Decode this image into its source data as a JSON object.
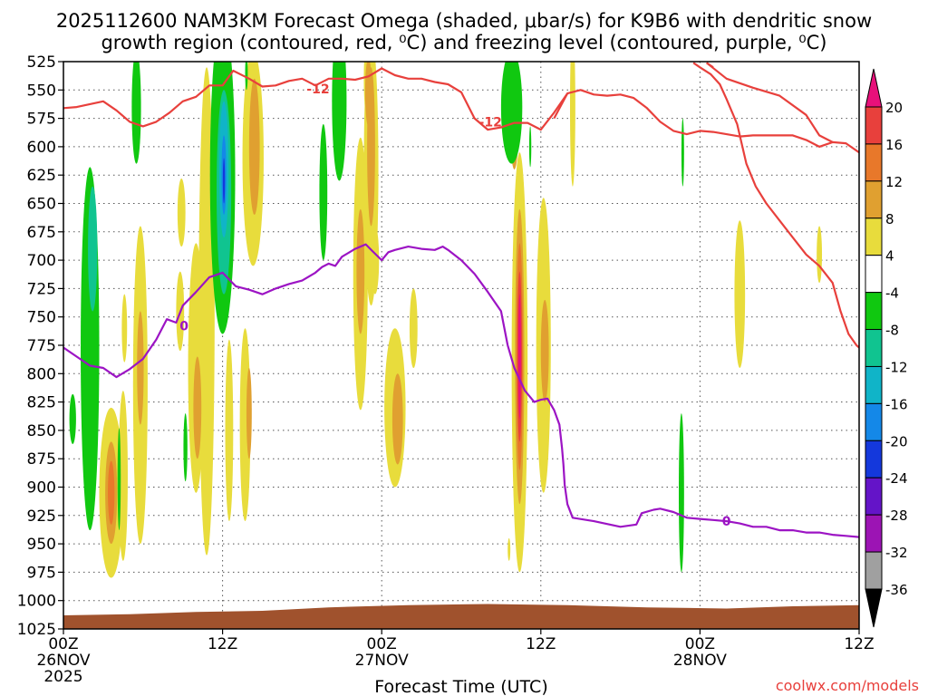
{
  "chart_data": {
    "type": "heatmap",
    "title_line1": "2025112600 NAM3KM Forecast Omega (shaded, μbar/s) for K9B6 with dendritic snow",
    "title_line2": "growth region (contoured, red, ⁰C) and freezing level (contoured, purple, ⁰C)",
    "xlabel": "Forecast Time (UTC)",
    "credit": "coolwx.com/models",
    "x_ticks": [
      {
        "h": 0,
        "label": "00Z",
        "sub": "26NOV",
        "sub2": "2025"
      },
      {
        "h": 12,
        "label": "12Z"
      },
      {
        "h": 24,
        "label": "00Z",
        "sub": "27NOV"
      },
      {
        "h": 36,
        "label": "12Z"
      },
      {
        "h": 48,
        "label": "00Z",
        "sub": "28NOV"
      },
      {
        "h": 60,
        "label": "12Z"
      }
    ],
    "xlim_hours": [
      0,
      60
    ],
    "ylim_mb": [
      525,
      1025
    ],
    "y_ticks": [
      525,
      550,
      575,
      600,
      625,
      650,
      675,
      700,
      725,
      750,
      775,
      800,
      825,
      850,
      875,
      900,
      925,
      950,
      975,
      1000,
      1025
    ],
    "colorbar": {
      "labels": [
        "20",
        "16",
        "12",
        "8",
        "4",
        "-4",
        "-8",
        "-12",
        "-16",
        "-20",
        "-24",
        "-28",
        "-32",
        "-36"
      ],
      "bands": [
        {
          "from": 20,
          "to": 24,
          "color": "#e8107a"
        },
        {
          "from": 16,
          "to": 20,
          "color": "#e8403c"
        },
        {
          "from": 12,
          "to": 16,
          "color": "#e8782a"
        },
        {
          "from": 8,
          "to": 12,
          "color": "#e0a030"
        },
        {
          "from": 4,
          "to": 8,
          "color": "#e8dc3c"
        },
        {
          "from": -4,
          "to": 4,
          "color": "#ffffff"
        },
        {
          "from": -8,
          "to": -4,
          "color": "#10c810"
        },
        {
          "from": -12,
          "to": -8,
          "color": "#10c490"
        },
        {
          "from": -16,
          "to": -12,
          "color": "#10b4c8"
        },
        {
          "from": -20,
          "to": -16,
          "color": "#1488e8"
        },
        {
          "from": -24,
          "to": -20,
          "color": "#1438dc"
        },
        {
          "from": -28,
          "to": -24,
          "color": "#6414c8"
        },
        {
          "from": -32,
          "to": -28,
          "color": "#9c14b4"
        },
        {
          "from": -36,
          "to": -32,
          "color": "#a0a0a0"
        }
      ],
      "top_arrow": "#e8107a",
      "bottom_arrow": "#000000"
    },
    "terrain_color": "#a0522d",
    "omega_features": [
      {
        "h": 2.0,
        "p": 778,
        "hw": 0.7,
        "hh": 160,
        "level": -8
      },
      {
        "h": 2.2,
        "p": 690,
        "hw": 0.35,
        "hh": 55,
        "level": -12
      },
      {
        "h": 0.7,
        "p": 840,
        "hw": 0.25,
        "hh": 22,
        "level": -8
      },
      {
        "h": 3.6,
        "p": 905,
        "hw": 0.9,
        "hh": 75,
        "level": 4
      },
      {
        "h": 3.6,
        "p": 905,
        "hw": 0.45,
        "hh": 45,
        "level": 8
      },
      {
        "h": 3.6,
        "p": 905,
        "hw": 0.25,
        "hh": 28,
        "level": 12
      },
      {
        "h": 4.2,
        "p": 893,
        "hw": 0.12,
        "hh": 45,
        "level": -8
      },
      {
        "h": 4.5,
        "p": 890,
        "hw": 0.35,
        "hh": 75,
        "level": 4
      },
      {
        "h": 4.6,
        "p": 760,
        "hw": 0.2,
        "hh": 30,
        "level": 4
      },
      {
        "h": 5.5,
        "p": 565,
        "hw": 0.35,
        "hh": 50,
        "level": -8
      },
      {
        "h": 5.8,
        "p": 810,
        "hw": 0.55,
        "hh": 140,
        "level": 4
      },
      {
        "h": 5.8,
        "p": 795,
        "hw": 0.25,
        "hh": 50,
        "level": 8
      },
      {
        "h": 8.8,
        "p": 745,
        "hw": 0.3,
        "hh": 35,
        "level": 4
      },
      {
        "h": 8.9,
        "p": 658,
        "hw": 0.3,
        "hh": 30,
        "level": 4
      },
      {
        "h": 10.0,
        "p": 795,
        "hw": 0.6,
        "hh": 110,
        "level": 4
      },
      {
        "h": 10.1,
        "p": 830,
        "hw": 0.3,
        "hh": 45,
        "level": 8
      },
      {
        "h": 9.2,
        "p": 865,
        "hw": 0.15,
        "hh": 30,
        "level": -8
      },
      {
        "h": 10.8,
        "p": 745,
        "hw": 0.6,
        "hh": 215,
        "level": 4
      },
      {
        "h": 12.0,
        "p": 625,
        "hw": 0.95,
        "hh": 140,
        "level": -8
      },
      {
        "h": 12.1,
        "p": 640,
        "hw": 0.55,
        "hh": 90,
        "level": -12
      },
      {
        "h": 12.1,
        "p": 620,
        "hw": 0.35,
        "hh": 60,
        "level": -16
      },
      {
        "h": 12.1,
        "p": 625,
        "hw": 0.18,
        "hh": 35,
        "level": -20
      },
      {
        "h": 12.1,
        "p": 630,
        "hw": 0.08,
        "hh": 20,
        "level": -24
      },
      {
        "h": 12.5,
        "p": 850,
        "hw": 0.3,
        "hh": 80,
        "level": 4
      },
      {
        "h": 13.8,
        "p": 535,
        "hw": 0.1,
        "hh": 15,
        "level": -8
      },
      {
        "h": 13.7,
        "p": 845,
        "hw": 0.4,
        "hh": 85,
        "level": 4
      },
      {
        "h": 14.0,
        "p": 835,
        "hw": 0.2,
        "hh": 40,
        "level": 8
      },
      {
        "h": 14.3,
        "p": 610,
        "hw": 0.8,
        "hh": 95,
        "level": 4
      },
      {
        "h": 14.4,
        "p": 600,
        "hw": 0.4,
        "hh": 60,
        "level": 8
      },
      {
        "h": 22.4,
        "p": 712,
        "hw": 0.55,
        "hh": 120,
        "level": 4
      },
      {
        "h": 22.4,
        "p": 710,
        "hw": 0.3,
        "hh": 55,
        "level": 8
      },
      {
        "h": 20.8,
        "p": 560,
        "hw": 0.55,
        "hh": 70,
        "level": -8
      },
      {
        "h": 19.6,
        "p": 640,
        "hw": 0.3,
        "hh": 60,
        "level": -8
      },
      {
        "h": 23.0,
        "p": 540,
        "hw": 0.35,
        "hh": 40,
        "level": 4
      },
      {
        "h": 23.2,
        "p": 620,
        "hw": 0.55,
        "hh": 120,
        "level": 4
      },
      {
        "h": 23.2,
        "p": 600,
        "hw": 0.3,
        "hh": 70,
        "level": 8
      },
      {
        "h": 23.0,
        "p": 552,
        "hw": 0.25,
        "hh": 30,
        "level": 8
      },
      {
        "h": 25.0,
        "p": 830,
        "hw": 0.8,
        "hh": 70,
        "level": 4
      },
      {
        "h": 25.2,
        "p": 840,
        "hw": 0.4,
        "hh": 40,
        "level": 8
      },
      {
        "h": 23.5,
        "p": 700,
        "hw": 0.3,
        "hh": 30,
        "level": 4
      },
      {
        "h": 26.4,
        "p": 760,
        "hw": 0.3,
        "hh": 35,
        "level": 4
      },
      {
        "h": 34.0,
        "p": 570,
        "hw": 0.35,
        "hh": 50,
        "level": 8
      },
      {
        "h": 33.8,
        "p": 565,
        "hw": 0.8,
        "hh": 50,
        "level": -8
      },
      {
        "h": 34.4,
        "p": 790,
        "hw": 0.6,
        "hh": 185,
        "level": 4
      },
      {
        "h": 34.4,
        "p": 785,
        "hw": 0.35,
        "hh": 130,
        "level": 8
      },
      {
        "h": 34.4,
        "p": 785,
        "hw": 0.25,
        "hh": 100,
        "level": 12
      },
      {
        "h": 34.4,
        "p": 785,
        "hw": 0.18,
        "hh": 75,
        "level": 16
      },
      {
        "h": 34.4,
        "p": 785,
        "hw": 0.1,
        "hh": 55,
        "level": 20
      },
      {
        "h": 33.6,
        "p": 955,
        "hw": 0.1,
        "hh": 10,
        "level": 4
      },
      {
        "h": 35.2,
        "p": 600,
        "hw": 0.08,
        "hh": 18,
        "level": -8
      },
      {
        "h": 36.2,
        "p": 775,
        "hw": 0.55,
        "hh": 130,
        "level": 4
      },
      {
        "h": 36.3,
        "p": 780,
        "hw": 0.3,
        "hh": 45,
        "level": 8
      },
      {
        "h": 38.4,
        "p": 565,
        "hw": 0.2,
        "hh": 70,
        "level": 4
      },
      {
        "h": 46.7,
        "p": 605,
        "hw": 0.1,
        "hh": 30,
        "level": -8
      },
      {
        "h": 46.6,
        "p": 905,
        "hw": 0.2,
        "hh": 70,
        "level": -8
      },
      {
        "h": 51.0,
        "p": 730,
        "hw": 0.4,
        "hh": 65,
        "level": 4
      },
      {
        "h": 57.0,
        "p": 695,
        "hw": 0.2,
        "hh": 25,
        "level": 4
      }
    ],
    "dgz_lines": [
      {
        "label": "-12",
        "label_h": 19.2,
        "label_p": 553,
        "points": [
          [
            0,
            566
          ],
          [
            1,
            565
          ],
          [
            3,
            560
          ],
          [
            4,
            568
          ],
          [
            5,
            578
          ],
          [
            6,
            582
          ],
          [
            7,
            578
          ],
          [
            8,
            570
          ],
          [
            9,
            560
          ],
          [
            10,
            556
          ],
          [
            11,
            546
          ],
          [
            12,
            546
          ],
          [
            12.8,
            533
          ],
          [
            14,
            540
          ],
          [
            15,
            547
          ],
          [
            16,
            546
          ],
          [
            17,
            542
          ],
          [
            18,
            540
          ],
          [
            19,
            546
          ],
          [
            20,
            540
          ],
          [
            21,
            540
          ],
          [
            22,
            541
          ],
          [
            23,
            538
          ],
          [
            24,
            531
          ],
          [
            25,
            537
          ],
          [
            26,
            540
          ],
          [
            27,
            540
          ],
          [
            28,
            543
          ],
          [
            29,
            545
          ],
          [
            30,
            552
          ],
          [
            31,
            575
          ],
          [
            32,
            585
          ],
          [
            33,
            583
          ],
          [
            34,
            579
          ],
          [
            35,
            579
          ],
          [
            36,
            585
          ],
          [
            37,
            570
          ],
          [
            38,
            553
          ],
          [
            39,
            550
          ],
          [
            40,
            554
          ],
          [
            41,
            555
          ],
          [
            42,
            554
          ],
          [
            43,
            557
          ],
          [
            44,
            566
          ],
          [
            45,
            578
          ],
          [
            46,
            586
          ],
          [
            47,
            589
          ],
          [
            48,
            586
          ],
          [
            49,
            587
          ],
          [
            50,
            589
          ],
          [
            51,
            591
          ],
          [
            52,
            590
          ],
          [
            53,
            590
          ],
          [
            54,
            590
          ],
          [
            55,
            590
          ],
          [
            56,
            594
          ],
          [
            57,
            600
          ],
          [
            58,
            596
          ],
          [
            59,
            597
          ],
          [
            60,
            605
          ]
        ]
      },
      {
        "label": "-12",
        "label_h": 32.2,
        "label_p": 582,
        "points": [
          [
            48.5,
            526
          ],
          [
            50,
            540
          ],
          [
            52,
            548
          ],
          [
            54,
            555
          ],
          [
            56,
            572
          ],
          [
            57,
            590
          ],
          [
            58,
            596
          ]
        ]
      },
      {
        "label": "",
        "label_h": 0,
        "label_p": 0,
        "points": [
          [
            48.5,
            526
          ],
          [
            49,
            530
          ]
        ]
      },
      {
        "label": "",
        "label_h": 0,
        "label_p": 0,
        "points": [
          [
            37,
            575
          ],
          [
            38,
            553
          ]
        ]
      }
    ],
    "dgz_right": {
      "points": [
        [
          47.5,
          526
        ],
        [
          48,
          530
        ],
        [
          48.8,
          536
        ],
        [
          49.5,
          545
        ],
        [
          50,
          558
        ],
        [
          50.8,
          580
        ],
        [
          51.5,
          615
        ],
        [
          52.2,
          635
        ],
        [
          53,
          650
        ],
        [
          54,
          665
        ],
        [
          55,
          680
        ],
        [
          56,
          695
        ],
        [
          57,
          705
        ],
        [
          58,
          720
        ],
        [
          58.6,
          745
        ],
        [
          59.2,
          765
        ],
        [
          59.8,
          775
        ],
        [
          60,
          777
        ]
      ]
    },
    "freezing_line": {
      "label": "0",
      "label_h": 9.1,
      "label_p": 758,
      "label2_h": 50.0,
      "label2_p": 930,
      "points": [
        [
          0,
          777
        ],
        [
          1,
          785
        ],
        [
          2,
          793
        ],
        [
          3,
          795
        ],
        [
          4,
          803
        ],
        [
          5,
          796
        ],
        [
          6,
          787
        ],
        [
          7,
          770
        ],
        [
          7.8,
          752
        ],
        [
          8.5,
          755
        ],
        [
          9,
          740
        ],
        [
          10,
          728
        ],
        [
          11,
          715
        ],
        [
          12,
          711
        ],
        [
          13,
          723
        ],
        [
          14,
          726
        ],
        [
          15,
          730
        ],
        [
          16,
          725
        ],
        [
          17,
          721
        ],
        [
          18,
          718
        ],
        [
          19,
          711
        ],
        [
          19.5,
          706
        ],
        [
          20,
          703
        ],
        [
          20.5,
          705
        ],
        [
          21,
          697
        ],
        [
          22,
          690
        ],
        [
          22.8,
          686
        ],
        [
          23.3,
          692
        ],
        [
          24,
          700
        ],
        [
          24.5,
          693
        ],
        [
          25,
          691
        ],
        [
          26,
          688
        ],
        [
          27,
          690
        ],
        [
          28,
          691
        ],
        [
          28.6,
          688
        ],
        [
          29,
          691
        ],
        [
          30,
          700
        ],
        [
          31,
          712
        ],
        [
          32,
          728
        ],
        [
          33,
          745
        ],
        [
          33.5,
          775
        ],
        [
          34,
          795
        ],
        [
          34.8,
          815
        ],
        [
          35.5,
          825
        ],
        [
          36,
          823
        ],
        [
          36.5,
          822
        ],
        [
          37,
          832
        ],
        [
          37.4,
          845
        ],
        [
          37.6,
          866
        ],
        [
          37.7,
          880
        ],
        [
          37.8,
          898
        ],
        [
          38.0,
          915
        ],
        [
          38.4,
          927
        ],
        [
          40,
          930
        ],
        [
          42,
          935
        ],
        [
          43.2,
          933
        ],
        [
          43.6,
          923
        ],
        [
          44.5,
          920
        ],
        [
          45,
          919
        ],
        [
          46,
          922
        ],
        [
          47,
          927
        ],
        [
          48,
          928
        ],
        [
          49,
          929
        ],
        [
          50,
          930
        ],
        [
          51,
          932
        ],
        [
          52,
          935
        ],
        [
          53,
          935
        ],
        [
          54,
          938
        ],
        [
          55,
          938
        ],
        [
          56,
          940
        ],
        [
          57,
          940
        ],
        [
          58,
          942
        ],
        [
          59,
          943
        ],
        [
          60,
          944
        ]
      ]
    }
  }
}
